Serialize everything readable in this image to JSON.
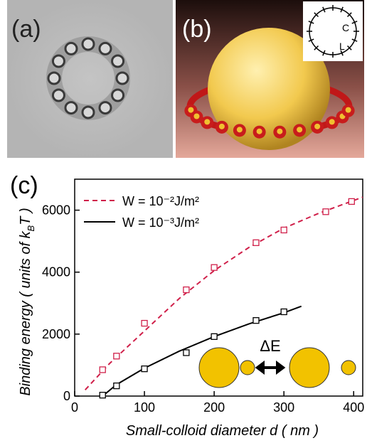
{
  "panel_labels": {
    "a": "(a)",
    "b": "(b)"
  },
  "inset_b": {
    "labels": [
      "C",
      "L"
    ]
  },
  "chart_data": {
    "type": "line",
    "panel_label": "(c)",
    "x_label": "Small-colloid diameter d ( nm )",
    "y_label": [
      "Binding energy ( units of k",
      "B",
      "T )"
    ],
    "xlim": [
      0,
      413
    ],
    "ylim": [
      0,
      7000
    ],
    "xticks": [
      0,
      100,
      200,
      300,
      400
    ],
    "yticks": [
      0,
      2000,
      4000,
      6000
    ],
    "annotation": "ΔE",
    "series": [
      {
        "name": "W = 10⁻²J/m²",
        "color": "#d0204a",
        "dashed": true,
        "x": [
          40,
          60,
          100,
          160,
          200,
          260,
          300,
          360,
          397
        ],
        "values": [
          850,
          1290,
          2350,
          3430,
          4150,
          4950,
          5360,
          5950,
          6280
        ],
        "fit_x": [
          15,
          50,
          100,
          150,
          200,
          250,
          300,
          350,
          413
        ],
        "fit_values": [
          200,
          1050,
          2100,
          3150,
          4050,
          4800,
          5420,
          5900,
          6420
        ]
      },
      {
        "name": "W = 10⁻³J/m²",
        "color": "#000000",
        "dashed": false,
        "x": [
          40,
          60,
          100,
          160,
          200,
          260,
          300
        ],
        "values": [
          30,
          330,
          880,
          1400,
          1920,
          2440,
          2720
        ],
        "fit_x": [
          40,
          60,
          100,
          150,
          200,
          250,
          300,
          325
        ],
        "fit_values": [
          0,
          370,
          900,
          1450,
          1920,
          2330,
          2690,
          2900
        ]
      }
    ]
  }
}
